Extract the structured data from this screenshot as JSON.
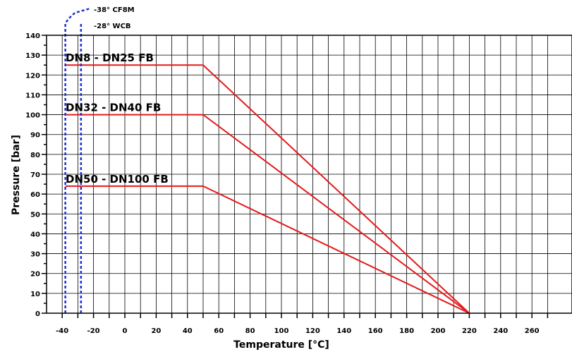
{
  "chart_data": {
    "type": "line",
    "xlabel": "Temperature [°C]",
    "ylabel": "Pressure [bar]",
    "xlim": [
      -50,
      275
    ],
    "ylim": [
      0,
      140
    ],
    "x_ticks": [
      -40,
      -20,
      0,
      20,
      40,
      60,
      80,
      100,
      120,
      140,
      160,
      180,
      200,
      220,
      240,
      260
    ],
    "y_ticks": [
      0,
      10,
      20,
      30,
      40,
      50,
      60,
      70,
      80,
      90,
      100,
      110,
      120,
      130,
      140
    ],
    "grid": true,
    "series": [
      {
        "name": "DN8 - DN25 FB",
        "color": "#e41a1c",
        "x": [
          -38,
          50,
          220
        ],
        "y": [
          125,
          125,
          0
        ]
      },
      {
        "name": "DN32 - DN40 FB",
        "color": "#e41a1c",
        "x": [
          -38,
          50,
          220
        ],
        "y": [
          100,
          100,
          0
        ]
      },
      {
        "name": "DN50 - DN100 FB",
        "color": "#e41a1c",
        "x": [
          -38,
          50,
          220
        ],
        "y": [
          64,
          64,
          0
        ]
      }
    ],
    "limit_lines": [
      {
        "label": "-38° CF8M",
        "x": -38,
        "color": "#1f2fd6",
        "style": "dashed"
      },
      {
        "label": "-28° WCB",
        "x": -28,
        "color": "#1f2fd6",
        "style": "dashed"
      }
    ]
  }
}
